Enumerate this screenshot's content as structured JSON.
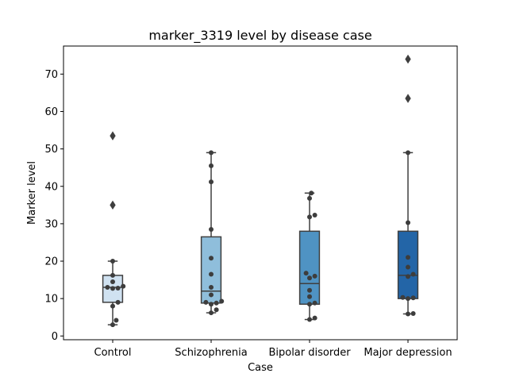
{
  "chart_data": {
    "type": "box",
    "title": "marker_3319 level by disease case",
    "xlabel": "Case",
    "ylabel": "Marker level",
    "ylim": [
      -1,
      77.5
    ],
    "yticks": [
      0,
      10,
      20,
      30,
      40,
      50,
      60,
      70
    ],
    "grid": false,
    "categories": [
      "Control",
      "Schizophrenia",
      "Bipolar disorder",
      "Major depression"
    ],
    "colors": [
      "#d0e2f1",
      "#8fbedb",
      "#4f93c3",
      "#2365a7"
    ],
    "boxes": [
      {
        "q1": 9.0,
        "median": 13.0,
        "q3": 16.2,
        "whisker_low": 3.0,
        "whisker_high": 20.0,
        "outliers": [
          35.0,
          53.5
        ]
      },
      {
        "q1": 8.8,
        "median": 12.0,
        "q3": 26.5,
        "whisker_low": 6.2,
        "whisker_high": 49.0,
        "outliers": []
      },
      {
        "q1": 8.5,
        "median": 14.0,
        "q3": 28.0,
        "whisker_low": 4.4,
        "whisker_high": 38.2,
        "outliers": []
      },
      {
        "q1": 10.0,
        "median": 16.2,
        "q3": 28.0,
        "whisker_low": 5.9,
        "whisker_high": 49.0,
        "outliers": [
          63.5,
          74.0
        ]
      }
    ],
    "points": [
      [
        3.0,
        4.2,
        8.0,
        9.0,
        12.8,
        13.0,
        13.3,
        12.7,
        14.5,
        16.2,
        20.0
      ],
      [
        6.2,
        7.0,
        8.5,
        8.8,
        9.3,
        9.0,
        11.0,
        13.0,
        16.5,
        20.8,
        28.5,
        41.2,
        45.5,
        49.0
      ],
      [
        4.4,
        4.8,
        8.5,
        8.8,
        10.5,
        12.2,
        15.5,
        16.0,
        16.8,
        31.8,
        32.3,
        36.8,
        38.2
      ],
      [
        5.9,
        6.0,
        10.0,
        10.2,
        10.3,
        15.9,
        16.5,
        18.4,
        21.0,
        30.3,
        49.0
      ]
    ]
  }
}
